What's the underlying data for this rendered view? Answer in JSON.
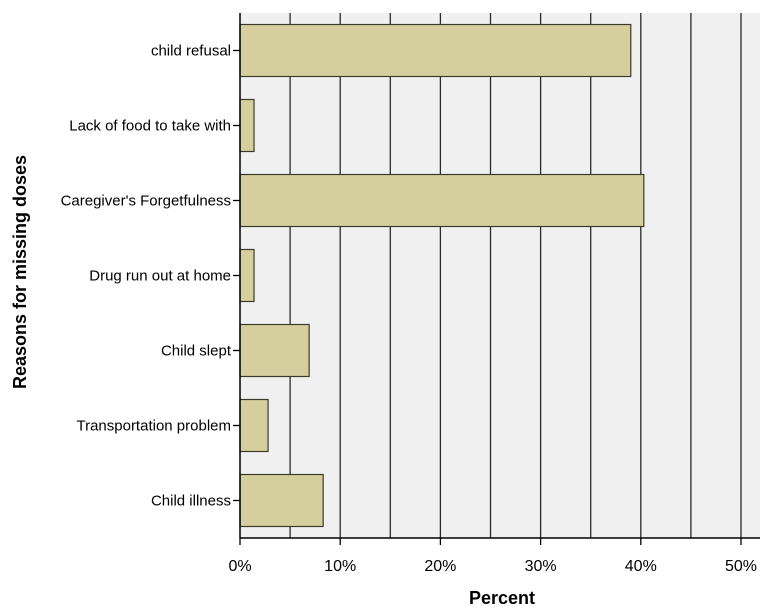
{
  "chart_data": {
    "type": "bar",
    "orientation": "horizontal",
    "xlabel": "Percent",
    "ylabel": "Reasons for missing doses",
    "categories": [
      "child refusal",
      "Lack of food to take with",
      "Caregiver's Forgetfulness",
      "Drug run out at home",
      "Child slept",
      "Transportation problem",
      "Child illness"
    ],
    "values": [
      39.0,
      1.4,
      40.3,
      1.4,
      6.9,
      2.8,
      8.3
    ],
    "xlim": [
      0,
      52
    ],
    "xticks": [
      0,
      10,
      20,
      30,
      40,
      50
    ],
    "xtick_labels": [
      "0%",
      "10%",
      "20%",
      "30%",
      "40%",
      "50%"
    ],
    "grid": "vertical lines every 5%",
    "colors": {
      "bar_fill": "#d4cf9d",
      "bar_stroke": "#3d3a2a",
      "plot_background": "#f0f0f0",
      "grid": "#2a2a2a"
    }
  }
}
